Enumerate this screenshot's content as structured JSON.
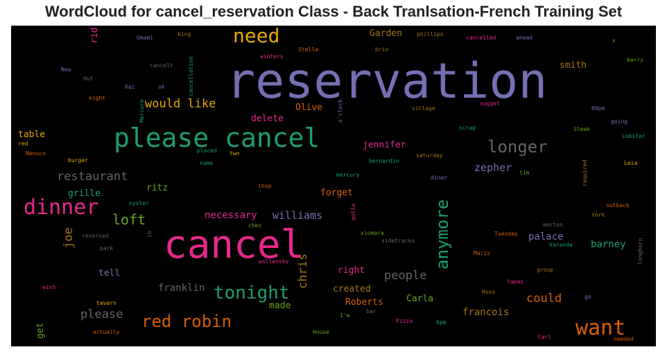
{
  "chart_data": {
    "type": "wordcloud",
    "title": "WordCloud for cancel_reservation Class - Back Tranlsation-French Training Set",
    "background": "#000000",
    "words": [
      {
        "text": "reservation",
        "color": "#7570b3"
      },
      {
        "text": "cancel",
        "color": "#e7298a"
      },
      {
        "text": "please cancel",
        "color": "#1b9e77"
      },
      {
        "text": "dinner",
        "color": "#e7298a"
      },
      {
        "text": "want",
        "color": "#d95f02"
      },
      {
        "text": "need",
        "color": "#e6ab02"
      },
      {
        "text": "tonight",
        "color": "#1b9e77"
      },
      {
        "text": "anymore",
        "color": "#1b9e77"
      },
      {
        "text": "red robin",
        "color": "#d95f02"
      },
      {
        "text": "longer",
        "color": "#666666"
      },
      {
        "text": "loft",
        "color": "#66a61e"
      },
      {
        "text": "restaurant",
        "color": "#666666"
      },
      {
        "text": "would like",
        "color": "#e6ab02"
      },
      {
        "text": "could",
        "color": "#d95f02"
      },
      {
        "text": "people",
        "color": "#666666"
      },
      {
        "text": "please",
        "color": "#666666"
      },
      {
        "text": "chris",
        "color": "#a6761d"
      },
      {
        "text": "joe",
        "color": "#a6761d"
      },
      {
        "text": "zepher",
        "color": "#7570b3"
      },
      {
        "text": "williams",
        "color": "#7570b3"
      },
      {
        "text": "necessary",
        "color": "#e7298a"
      },
      {
        "text": "franklin",
        "color": "#666666"
      },
      {
        "text": "palace",
        "color": "#7570b3"
      },
      {
        "text": "barney",
        "color": "#1b9e77"
      },
      {
        "text": "francois",
        "color": "#a6761d"
      },
      {
        "text": "ritz",
        "color": "#66a61e"
      },
      {
        "text": "grille",
        "color": "#1b9e77"
      },
      {
        "text": "table",
        "color": "#e6ab02"
      },
      {
        "text": "delete",
        "color": "#e7298a"
      },
      {
        "text": "Olive",
        "color": "#d95f02"
      },
      {
        "text": "Garden",
        "color": "#a6761d"
      },
      {
        "text": "smith",
        "color": "#a6761d"
      },
      {
        "text": "jennifer",
        "color": "#e7298a"
      },
      {
        "text": "forget",
        "color": "#d95f02"
      },
      {
        "text": "right",
        "color": "#e7298a"
      },
      {
        "text": "created",
        "color": "#a6761d"
      },
      {
        "text": "Roberts",
        "color": "#d95f02"
      },
      {
        "text": "Carla",
        "color": "#66a61e"
      },
      {
        "text": "made",
        "color": "#66a61e"
      },
      {
        "text": "tell",
        "color": "#7570b3"
      },
      {
        "text": "rid",
        "color": "#e7298a"
      },
      {
        "text": "get",
        "color": "#66a61e"
      },
      {
        "text": "Umami",
        "color": "#7570b3"
      },
      {
        "text": "king",
        "color": "#a6761d"
      },
      {
        "text": "cancellation",
        "color": "#1b9e77"
      },
      {
        "text": "winters",
        "color": "#e7298a"
      },
      {
        "text": "Stella",
        "color": "#d95f02"
      },
      {
        "text": "brio",
        "color": "#a6761d"
      },
      {
        "text": "phillips",
        "color": "#a6761d"
      },
      {
        "text": "cancelled",
        "color": "#e7298a"
      },
      {
        "text": "ahead",
        "color": "#7570b3"
      },
      {
        "text": "x",
        "color": "#66a61e"
      },
      {
        "text": "barry",
        "color": "#66a61e"
      },
      {
        "text": "New",
        "color": "#7570b3"
      },
      {
        "text": "cancelt",
        "color": "#666666"
      },
      {
        "text": "Hut",
        "color": "#666666"
      },
      {
        "text": "Xai",
        "color": "#7570b3"
      },
      {
        "text": "ok",
        "color": "#7570b3"
      },
      {
        "text": "eight",
        "color": "#d95f02"
      },
      {
        "text": "Mercure",
        "color": "#1b9e77"
      },
      {
        "text": "o'clock",
        "color": "#7570b3"
      },
      {
        "text": "nugget",
        "color": "#e7298a"
      },
      {
        "text": "village",
        "color": "#a6761d"
      },
      {
        "text": "00pm",
        "color": "#7570b3"
      },
      {
        "text": "going",
        "color": "#7570b3"
      },
      {
        "text": "scrap",
        "color": "#1b9e77"
      },
      {
        "text": "Steak",
        "color": "#66a61e"
      },
      {
        "text": "Lobster",
        "color": "#1b9e77"
      },
      {
        "text": "red",
        "color": "#e6ab02"
      },
      {
        "text": "Nenuco",
        "color": "#d95f02"
      },
      {
        "text": "placed",
        "color": "#1b9e77"
      },
      {
        "text": "two",
        "color": "#e6ab02"
      },
      {
        "text": "saturday",
        "color": "#a6761d"
      },
      {
        "text": "burger",
        "color": "#e6ab02"
      },
      {
        "text": "name",
        "color": "#1b9e77"
      },
      {
        "text": "bernardin",
        "color": "#1b9e77"
      },
      {
        "text": "tim",
        "color": "#66a61e"
      },
      {
        "text": "required",
        "color": "#a6761d"
      },
      {
        "text": "Leia",
        "color": "#e6ab02"
      },
      {
        "text": "mercury",
        "color": "#1b9e77"
      },
      {
        "text": "diner",
        "color": "#7570b3"
      },
      {
        "text": "ihop",
        "color": "#d95f02"
      },
      {
        "text": "oyster",
        "color": "#1b9e77"
      },
      {
        "text": "gotta",
        "color": "#e7298a"
      },
      {
        "text": "outback",
        "color": "#d95f02"
      },
      {
        "text": "chez",
        "color": "#66a61e"
      },
      {
        "text": "York",
        "color": "#a6761d"
      },
      {
        "text": "reserved",
        "color": "#666666"
      },
      {
        "text": "jb",
        "color": "#666666"
      },
      {
        "text": "xiomara",
        "color": "#66a61e"
      },
      {
        "text": "morton",
        "color": "#666666"
      },
      {
        "text": "Tuesday",
        "color": "#d95f02"
      },
      {
        "text": "sidetracks",
        "color": "#666666"
      },
      {
        "text": "park",
        "color": "#666666"
      },
      {
        "text": "Varanda",
        "color": "#1b9e77"
      },
      {
        "text": "longhorn",
        "color": "#666666"
      },
      {
        "text": "wollensky",
        "color": "#e7298a"
      },
      {
        "text": "Maris",
        "color": "#d95f02"
      },
      {
        "text": "group",
        "color": "#a6761d"
      },
      {
        "text": "tapas",
        "color": "#e7298a"
      },
      {
        "text": "wish",
        "color": "#e7298a"
      },
      {
        "text": "Hoss",
        "color": "#a6761d"
      },
      {
        "text": "go",
        "color": "#7570b3"
      },
      {
        "text": "tavern",
        "color": "#e6ab02"
      },
      {
        "text": "bar",
        "color": "#666666"
      },
      {
        "text": "I'm",
        "color": "#66a61e"
      },
      {
        "text": "Pizza",
        "color": "#e7298a"
      },
      {
        "text": "6pm",
        "color": "#1b9e77"
      },
      {
        "text": "actually",
        "color": "#d95f02"
      },
      {
        "text": "House",
        "color": "#66a61e"
      },
      {
        "text": "Carl",
        "color": "#e7298a"
      },
      {
        "text": "needed",
        "color": "#d95f02"
      }
    ]
  }
}
